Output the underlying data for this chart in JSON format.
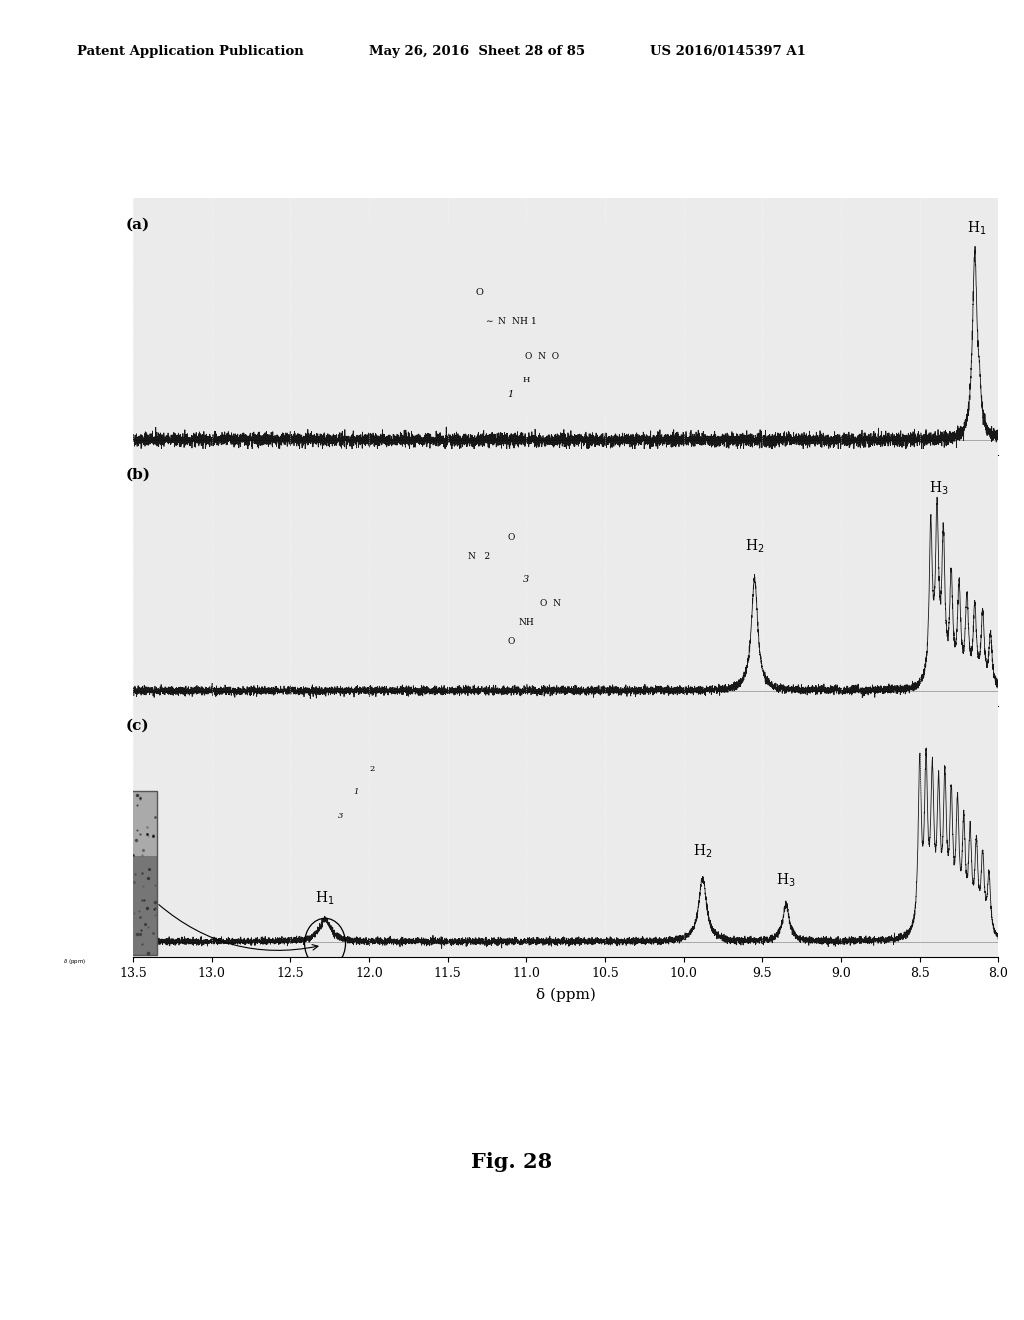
{
  "background_color": "#ffffff",
  "header_left": "Patent Application Publication",
  "header_center": "May 26, 2016  Sheet 28 of 85",
  "header_right": "US 2016/0145397 A1",
  "fig_label": "Fig. 28",
  "xmin": 8.0,
  "xmax": 13.5,
  "xlabel": "δ (ppm)",
  "panel_labels": [
    "(a)",
    "(b)",
    "(c)"
  ],
  "xticks": [
    13.5,
    13.0,
    12.5,
    12.0,
    11.5,
    11.0,
    10.5,
    10.0,
    9.5,
    9.0,
    8.5,
    8.0
  ],
  "grid_color": "#cccccc",
  "panel_bg": "#ebebeb"
}
